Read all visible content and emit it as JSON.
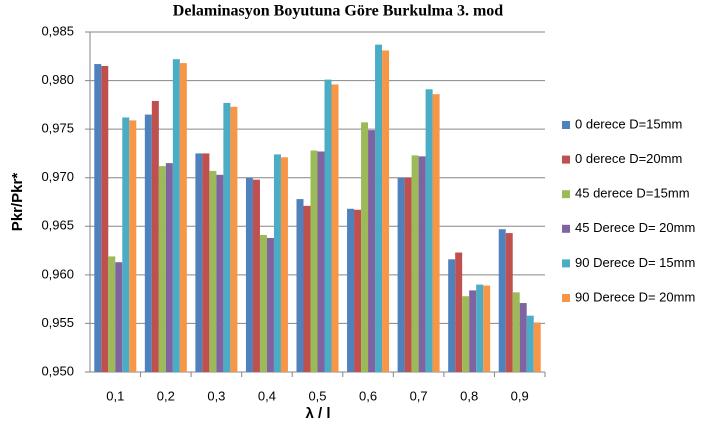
{
  "chart_data": {
    "type": "bar",
    "title": "Delaminasyon Boyutuna Göre Burkulma  3. mod",
    "x_label": "λ / l",
    "y_label": "Pkr/Pkr*",
    "categories": [
      "0,1",
      "0,2",
      "0,3",
      "0,4",
      "0,5",
      "0,6",
      "0,7",
      "0,8",
      "0,9"
    ],
    "series": [
      {
        "name": "0 derece D=15mm",
        "color": "#4F81BD",
        "values": [
          0.9817,
          0.9765,
          0.9725,
          0.97,
          0.9678,
          0.9668,
          0.97,
          0.9616,
          0.9647
        ]
      },
      {
        "name": "0 derece D=20mm",
        "color": "#C0504D",
        "values": [
          0.9815,
          0.9779,
          0.9725,
          0.9698,
          0.9671,
          0.9667,
          0.97,
          0.9623,
          0.9643
        ]
      },
      {
        "name": "45 derece D=15mm",
        "color": "#9BBB59",
        "values": [
          0.9619,
          0.9712,
          0.9707,
          0.9641,
          0.9728,
          0.9757,
          0.9723,
          0.9578,
          0.9582
        ]
      },
      {
        "name": "45 Derece D= 20mm",
        "color": "#8064A2",
        "values": [
          0.9613,
          0.9715,
          0.9703,
          0.9638,
          0.9727,
          0.9749,
          0.9722,
          0.9584,
          0.9571
        ]
      },
      {
        "name": "90 Derece D= 15mm",
        "color": "#4BACC6",
        "values": [
          0.9762,
          0.9822,
          0.9777,
          0.9724,
          0.9801,
          0.9837,
          0.9791,
          0.959,
          0.9558
        ]
      },
      {
        "name": "90 Derece D= 20mm",
        "color": "#F79646",
        "values": [
          0.9759,
          0.9818,
          0.9773,
          0.9721,
          0.9796,
          0.9831,
          0.9786,
          0.9589,
          0.9551
        ]
      }
    ],
    "ylim": [
      0.95,
      0.985
    ],
    "yticks": [
      {
        "value": 0.95,
        "label": "0,950"
      },
      {
        "value": 0.955,
        "label": "0,955"
      },
      {
        "value": 0.96,
        "label": "0,960"
      },
      {
        "value": 0.965,
        "label": "0,965"
      },
      {
        "value": 0.97,
        "label": "0,970"
      },
      {
        "value": 0.975,
        "label": "0,975"
      },
      {
        "value": 0.98,
        "label": "0,980"
      },
      {
        "value": 0.985,
        "label": "0,985"
      }
    ],
    "grid": true,
    "legend": "right"
  }
}
